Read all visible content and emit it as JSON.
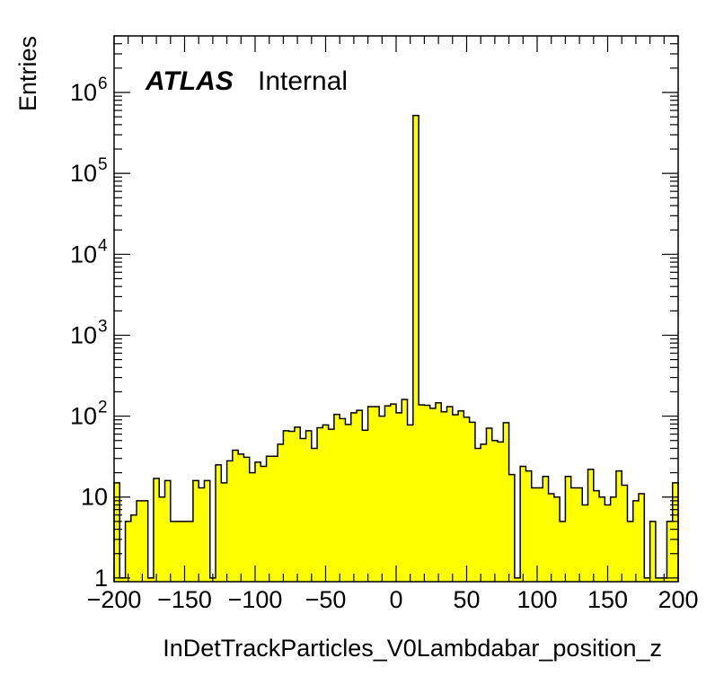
{
  "chart_data": {
    "type": "histogram",
    "label": {
      "experiment": "ATLAS",
      "status": "Internal"
    },
    "xlabel": "InDetTrackParticles_V0Lambdabar_position_z",
    "ylabel": "Entries",
    "xlim": [
      -200,
      200
    ],
    "ylim": [
      0.9,
      5000000
    ],
    "yscale": "log",
    "grid": false,
    "legend": "none",
    "fill_color": "#ffff00",
    "line_color": "#000000",
    "bin_width": 4,
    "bin_edges_start": -200,
    "values": [
      15,
      1,
      5,
      6,
      9,
      9,
      1,
      17,
      10,
      16,
      5,
      5,
      5,
      5,
      16,
      13,
      16,
      1,
      25,
      15,
      28,
      38,
      34,
      31,
      20,
      27,
      24,
      32,
      32,
      45,
      66,
      65,
      73,
      53,
      66,
      40,
      72,
      78,
      69,
      105,
      93,
      79,
      110,
      118,
      67,
      131,
      131,
      100,
      134,
      141,
      110,
      161,
      78,
      520000,
      138,
      136,
      125,
      146,
      113,
      131,
      104,
      116,
      97,
      84,
      40,
      45,
      71,
      50,
      48,
      83,
      19,
      1,
      24,
      21,
      13,
      13,
      18,
      11,
      10,
      5,
      18,
      13,
      13,
      8,
      22,
      12,
      10,
      8,
      10,
      21,
      14,
      5,
      9,
      11,
      1,
      5,
      1,
      1,
      5,
      15
    ],
    "xticks": {
      "values": [
        -200,
        -150,
        -100,
        -50,
        0,
        50,
        100,
        150,
        200
      ],
      "labels": [
        "−200",
        "−150",
        "−100",
        "−50",
        "0",
        "50",
        "100",
        "150",
        "200"
      ]
    },
    "yticks": [
      {
        "value": 1,
        "base": "1",
        "exp": ""
      },
      {
        "value": 10,
        "base": "10",
        "exp": ""
      },
      {
        "value": 100,
        "base": "10",
        "exp": "2"
      },
      {
        "value": 1000,
        "base": "10",
        "exp": "3"
      },
      {
        "value": 10000,
        "base": "10",
        "exp": "4"
      },
      {
        "value": 100000,
        "base": "10",
        "exp": "5"
      },
      {
        "value": 1000000,
        "base": "10",
        "exp": "6"
      }
    ]
  }
}
